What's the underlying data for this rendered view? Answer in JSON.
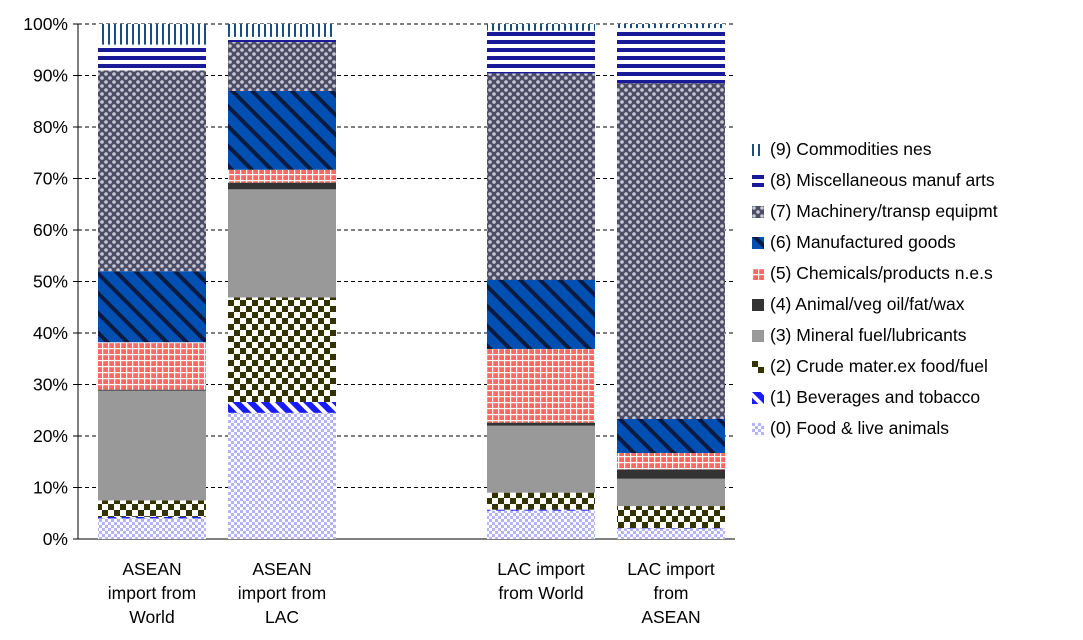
{
  "chart_data": {
    "type": "bar",
    "stacked": true,
    "percent_stacked": true,
    "categories": [
      "ASEAN import from World",
      "ASEAN import from LAC",
      "LAC import from World",
      "LAC import from ASEAN"
    ],
    "category_lines": [
      [
        "ASEAN",
        "import from",
        "World"
      ],
      [
        "ASEAN",
        "import from",
        "LAC"
      ],
      [
        "LAC import",
        "from World"
      ],
      [
        "LAC import",
        "from",
        "ASEAN"
      ]
    ],
    "ylim": [
      0,
      100
    ],
    "yticks": [
      "0%",
      "10%",
      "20%",
      "30%",
      "40%",
      "50%",
      "60%",
      "70%",
      "80%",
      "90%",
      "100%"
    ],
    "grid": true,
    "legend_position": "right",
    "series": [
      {
        "name": "(0) Food & live animals",
        "color": "#b3b3ff",
        "pattern": "checker-fine",
        "values": [
          4.0,
          24.5,
          5.5,
          2.0
        ]
      },
      {
        "name": "(1) Beverages and tobacco",
        "color": "#1a1aff",
        "pattern": "diag-stripe",
        "values": [
          0.3,
          2.1,
          0.2,
          0.1
        ]
      },
      {
        "name": "(2) Crude mater.ex food/fuel",
        "color": "#333300",
        "pattern": "checker",
        "values": [
          3.2,
          20.3,
          3.3,
          4.3
        ]
      },
      {
        "name": "(3) Mineral fuel/lubricants",
        "color": "#999999",
        "pattern": "solid",
        "values": [
          21.3,
          21.0,
          13.0,
          5.3
        ]
      },
      {
        "name": "(4) Animal/veg oil/fat/wax",
        "color": "#333333",
        "pattern": "solid",
        "values": [
          0.2,
          1.3,
          0.6,
          1.8
        ]
      },
      {
        "name": "(5) Chemicals/products n.e.s",
        "color": "#ff6666",
        "pattern": "grid",
        "values": [
          9.2,
          2.5,
          14.3,
          3.2
        ]
      },
      {
        "name": "(6) Manufactured goods",
        "color": "#0050b3",
        "pattern": "wide-diag",
        "values": [
          13.8,
          15.3,
          13.4,
          6.6
        ]
      },
      {
        "name": "(7) Machinery/transp equipmt",
        "color": "#4d4d66",
        "pattern": "dots",
        "values": [
          39.0,
          9.5,
          40.1,
          65.2
        ]
      },
      {
        "name": "(8) Miscellaneous manuf arts",
        "color": "#1a1a99",
        "pattern": "h-stripe",
        "values": [
          5.0,
          1.0,
          8.3,
          10.7
        ]
      },
      {
        "name": "(9) Commodities nes",
        "color": "#1a4d80",
        "pattern": "v-stripe",
        "values": [
          4.0,
          2.5,
          1.3,
          0.8
        ]
      }
    ]
  }
}
